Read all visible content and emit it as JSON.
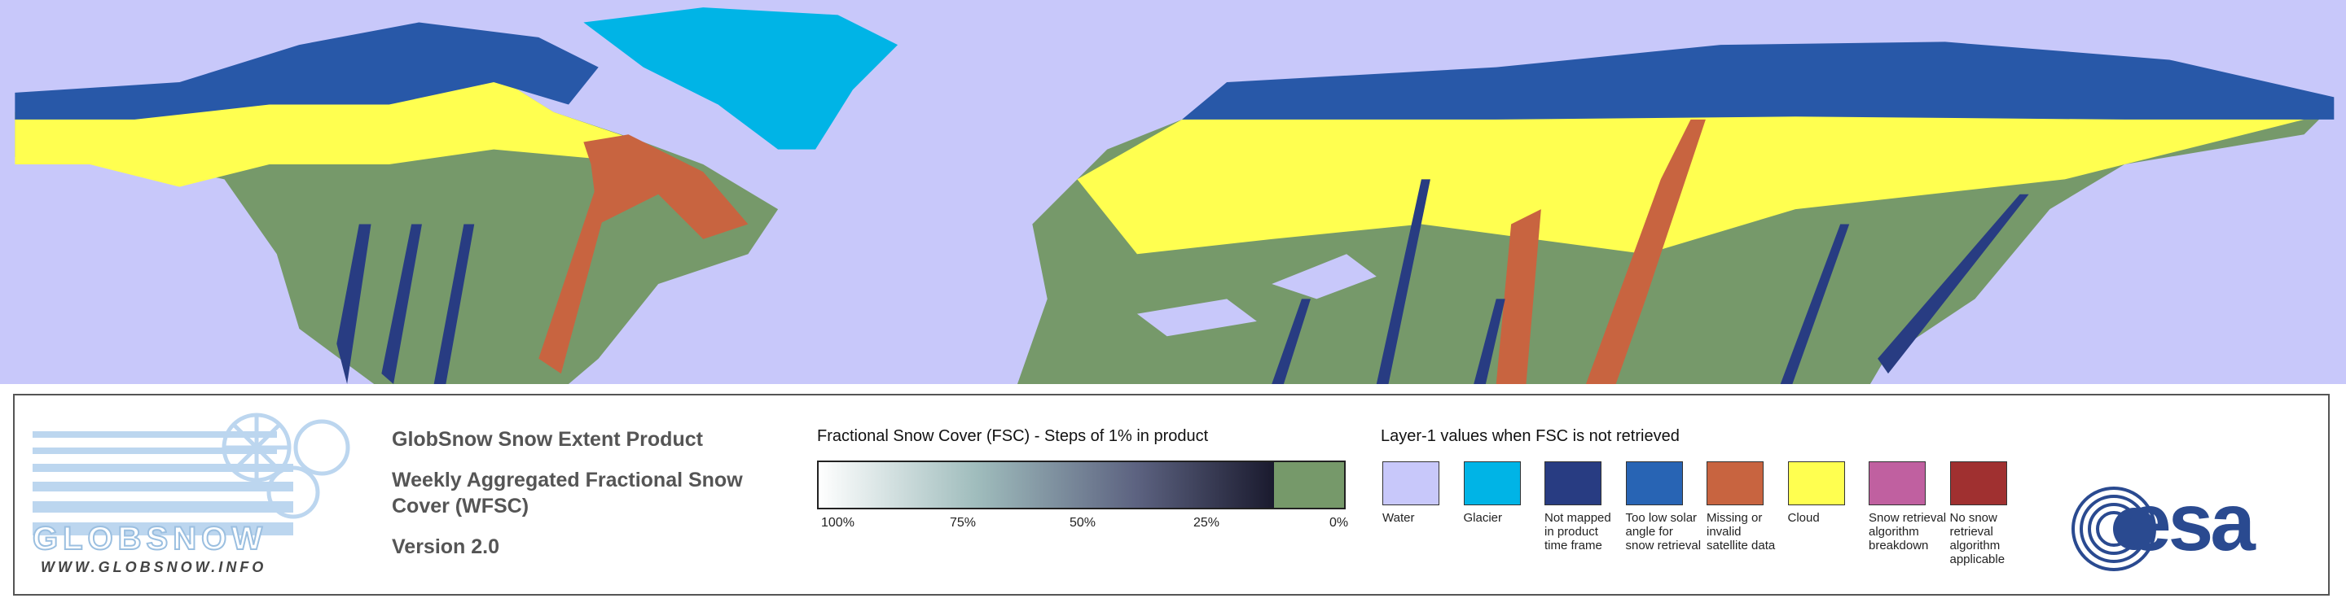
{
  "logo": {
    "name": "GLOBSNOW",
    "url": "WWW.GLOBSNOW.INFO"
  },
  "header": {
    "title": "GlobSnow Snow Extent Product",
    "subtitle": "Weekly Aggregated Fractional Snow Cover (WFSC)",
    "version": "Version 2.0"
  },
  "colorbar": {
    "title": "Fractional Snow Cover (FSC) - Steps of 1% in product",
    "labels": [
      "100%",
      "75%",
      "50%",
      "25%",
      "0%"
    ],
    "no_snow_color": "#76996a"
  },
  "legend": {
    "title": "Layer-1 values when FSC is not retrieved",
    "classes": [
      {
        "label": "Water",
        "color": "#c8c8fa"
      },
      {
        "label": "Glacier",
        "color": "#00b4e6"
      },
      {
        "label": "Not mapped in product time frame",
        "color": "#283c82"
      },
      {
        "label": "Too low solar angle for snow retrieval",
        "color": "#2864b4"
      },
      {
        "label": "Missing or invalid satellite data",
        "color": "#c86440"
      },
      {
        "label": "Cloud",
        "color": "#ffff50"
      },
      {
        "label": "Snow retrieval algorithm breakdown",
        "color": "#c060a0"
      },
      {
        "label": "No snow retrieval algorithm applicable",
        "color": "#a03030"
      }
    ]
  },
  "agency": "esa"
}
